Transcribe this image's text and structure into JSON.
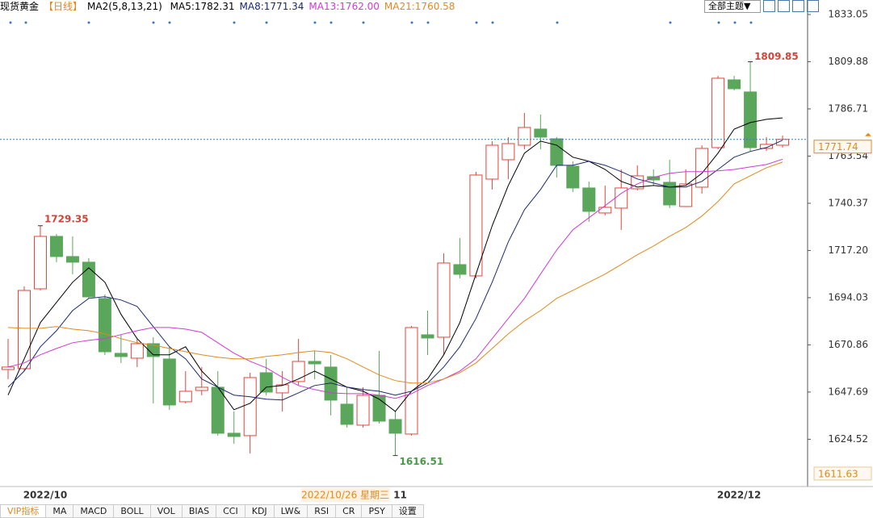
{
  "header": {
    "instrument": "现货黄金",
    "period": "【日线】",
    "theme_menu": "全部主题▼"
  },
  "chart_data": {
    "type": "candlestick",
    "indicator_label": "MA2(5,8,13,21)",
    "categories": [
      null,
      null,
      "2022/10",
      null,
      null,
      null,
      null,
      null,
      null,
      null,
      null,
      null,
      null,
      null,
      null,
      null,
      null,
      null,
      null,
      null,
      null,
      null,
      null,
      null,
      "11",
      null,
      null,
      null,
      null,
      null,
      null,
      null,
      null,
      null,
      null,
      null,
      null,
      null,
      null,
      null,
      null,
      null,
      null,
      null,
      null,
      "2022/12",
      null,
      null,
      null
    ],
    "cursor_date": "2022/10/26 星期三",
    "open": [
      1658.76,
      1659.16,
      1698.37,
      1724.12,
      1714.22,
      1711.45,
      1693.62,
      1666.69,
      1664.31,
      1671.44,
      1663.92,
      1642.92,
      1648.47,
      1650.05,
      1627.47,
      1626.29,
      1657.18,
      1647.28,
      1652.83,
      1662.73,
      1659.96,
      1641.74,
      1631.43,
      1646.09,
      1634.21,
      1627.08,
      1675.8,
      1674.61,
      1710.26,
      1704.72,
      1752.24,
      1761.75,
      1768.88,
      1776.8,
      1772.05,
      1758.58,
      1747.89,
      1735.61,
      1737.99,
      1747.49,
      1753.43,
      1750.66,
      1738.78,
      1748.28,
      1767.69,
      1800.97,
      1795.03,
      1767.3,
      1768.88
    ],
    "high": [
      1673.82,
      1699.56,
      1729.35,
      1725.31,
      1724.12,
      1713.43,
      1695.6,
      1675.8,
      1673.82,
      1674.61,
      1669.86,
      1657.97,
      1659.96,
      1657.97,
      1638.17,
      1657.18,
      1663.92,
      1657.97,
      1673.82,
      1667.88,
      1665.9,
      1650.05,
      1650.05,
      1667.88,
      1638.17,
      1680.16,
      1687.68,
      1715.8,
      1723.33,
      1755.81,
      1770.86,
      1772.84,
      1784.73,
      1783.93,
      1772.84,
      1760.96,
      1751.05,
      1749.07,
      1757.0,
      1758.98,
      1757.0,
      1761.75,
      1757.0,
      1768.88,
      1802.95,
      1802.95,
      1809.85,
      1772.84,
      1773.63
    ],
    "low": [
      1654.01,
      1657.97,
      1697.58,
      1711.45,
      1705.51,
      1693.62,
      1665.9,
      1661.93,
      1659.96,
      1642.13,
      1638.96,
      1642.13,
      1646.09,
      1626.29,
      1622.33,
      1617.5,
      1646.09,
      1638.17,
      1650.85,
      1654.01,
      1636.19,
      1630.25,
      1630.25,
      1632.23,
      1616.51,
      1626.29,
      1665.9,
      1665.9,
      1703.53,
      1703.53,
      1747.1,
      1752.24,
      1766.9,
      1766.9,
      1753.04,
      1745.91,
      1731.25,
      1734.42,
      1727.29,
      1746.7,
      1749.07,
      1737.99,
      1738.78,
      1745.12,
      1766.9,
      1795.82,
      1765.71,
      1766.11,
      1767.69
    ],
    "close": [
      1659.96,
      1697.58,
      1724.12,
      1714.22,
      1711.45,
      1694.42,
      1667.48,
      1665.11,
      1671.44,
      1665.11,
      1641.34,
      1648.07,
      1650.05,
      1627.47,
      1625.89,
      1654.8,
      1647.68,
      1651.24,
      1662.73,
      1661.54,
      1643.72,
      1631.83,
      1646.09,
      1633.41,
      1627.47,
      1679.36,
      1674.22,
      1711.05,
      1705.51,
      1754.23,
      1768.88,
      1769.67,
      1777.6,
      1772.84,
      1758.98,
      1747.89,
      1736.4,
      1738.38,
      1747.89,
      1753.83,
      1751.85,
      1739.57,
      1749.87,
      1767.3,
      1801.76,
      1796.61,
      1767.69,
      1769.28,
      1771.74
    ],
    "up_color": "#e0453b",
    "down_color": "#5aa65a",
    "series": [
      {
        "name": "MA5:1782.31",
        "color": "#000000",
        "values": [
          1646.2,
          1664.0,
          1681.8,
          1691.7,
          1701.6,
          1708.7,
          1701.6,
          1685.8,
          1673.9,
          1666.0,
          1666.0,
          1669.9,
          1658.0,
          1650.1,
          1639.0,
          1642.2,
          1650.1,
          1650.9,
          1654.1,
          1658.0,
          1654.1,
          1650.1,
          1648.1,
          1644.2,
          1638.2,
          1648.1,
          1654.1,
          1666.0,
          1681.8,
          1705.6,
          1729.3,
          1749.1,
          1765.0,
          1770.9,
          1768.9,
          1763.0,
          1761.0,
          1757.0,
          1751.1,
          1748.3,
          1749.1,
          1748.3,
          1749.1,
          1755.1,
          1765.0,
          1776.8,
          1780.0,
          1781.6,
          1782.31
        ]
      },
      {
        "name": "MA8:1771.34",
        "color": "#1c2a6e",
        "values": [
          1650.1,
          1658.0,
          1669.9,
          1677.8,
          1687.7,
          1693.7,
          1694.5,
          1692.9,
          1689.7,
          1679.8,
          1669.9,
          1664.0,
          1654.1,
          1650.1,
          1646.2,
          1645.4,
          1644.2,
          1643.8,
          1647.3,
          1650.9,
          1652.1,
          1650.1,
          1648.9,
          1648.1,
          1646.2,
          1648.1,
          1652.1,
          1660.0,
          1669.9,
          1683.8,
          1701.6,
          1721.4,
          1737.2,
          1747.1,
          1759.0,
          1759.0,
          1761.0,
          1759.0,
          1755.9,
          1752.3,
          1750.3,
          1748.3,
          1748.3,
          1751.1,
          1757.0,
          1763.0,
          1765.8,
          1767.7,
          1771.34
        ]
      },
      {
        "name": "MA13:1762.00",
        "color": "#d13ad1",
        "values": [
          1660.0,
          1662.0,
          1666.0,
          1669.1,
          1671.9,
          1673.1,
          1673.9,
          1675.9,
          1677.8,
          1679.4,
          1679.4,
          1678.6,
          1677.0,
          1671.9,
          1666.8,
          1662.8,
          1659.6,
          1654.9,
          1650.9,
          1648.9,
          1647.3,
          1646.9,
          1646.9,
          1646.2,
          1644.6,
          1646.9,
          1650.9,
          1654.1,
          1658.0,
          1664.0,
          1673.9,
          1683.8,
          1693.7,
          1705.6,
          1717.4,
          1727.3,
          1733.3,
          1739.2,
          1745.2,
          1749.9,
          1753.1,
          1755.1,
          1755.9,
          1755.9,
          1756.3,
          1757.0,
          1758.2,
          1759.4,
          1762.0
        ]
      },
      {
        "name": "MA21:1760.58",
        "color": "#e08a1e",
        "values": [
          1679.4,
          1679.0,
          1679.0,
          1679.8,
          1678.6,
          1677.8,
          1676.3,
          1673.9,
          1671.9,
          1670.7,
          1669.1,
          1667.5,
          1666.0,
          1664.8,
          1664.0,
          1664.0,
          1665.2,
          1666.0,
          1667.1,
          1667.9,
          1667.1,
          1664.0,
          1660.0,
          1656.1,
          1653.3,
          1652.1,
          1652.1,
          1654.1,
          1657.2,
          1662.0,
          1669.1,
          1676.3,
          1682.6,
          1687.7,
          1693.7,
          1697.6,
          1701.6,
          1705.6,
          1710.3,
          1715.1,
          1719.4,
          1724.2,
          1728.5,
          1734.1,
          1741.2,
          1749.9,
          1753.9,
          1757.8,
          1760.58
        ]
      }
    ],
    "ylim": [
      1601.7,
      1837.0
    ],
    "yticks": [
      1833.05,
      1809.88,
      1786.71,
      1763.54,
      1740.37,
      {
        "value": 1717.2,
        "label": "1717.20"
      },
      1694.03,
      1670.86,
      1647.69,
      1624.52
    ],
    "bottom_marker": 1611.63
  },
  "tabs": [
    "VIP指标",
    "MA",
    "MACD",
    "BOLL",
    "VOL",
    "BIAS",
    "CCI",
    "KDJ",
    "LW&",
    "RSI",
    "CR",
    "PSY",
    "设置"
  ]
}
